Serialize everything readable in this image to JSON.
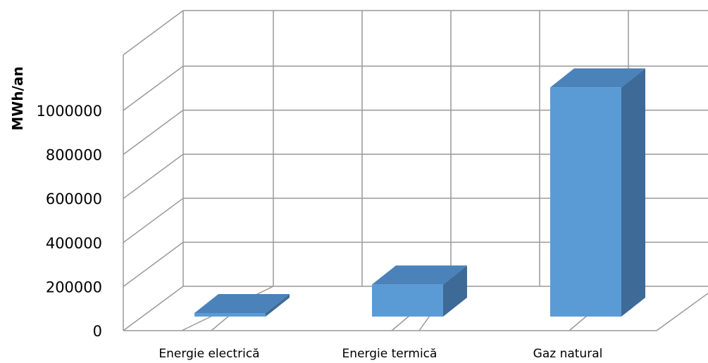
{
  "chart_data": {
    "type": "bar",
    "title": "",
    "xlabel": "",
    "ylabel": "MWh/an",
    "categories": [
      "Energie electrică",
      "Energie termică",
      "Gaz natural"
    ],
    "values": [
      8000,
      128000,
      915000
    ],
    "ylim": [
      0,
      1000000
    ],
    "yticks": [
      "0",
      "200000",
      "400000",
      "600000",
      "800000",
      "1000000"
    ],
    "grid": true,
    "legend": "none",
    "colors": {
      "front": "#5b9bd5",
      "top": "#4a82b9",
      "side": "#3d6a97"
    }
  }
}
